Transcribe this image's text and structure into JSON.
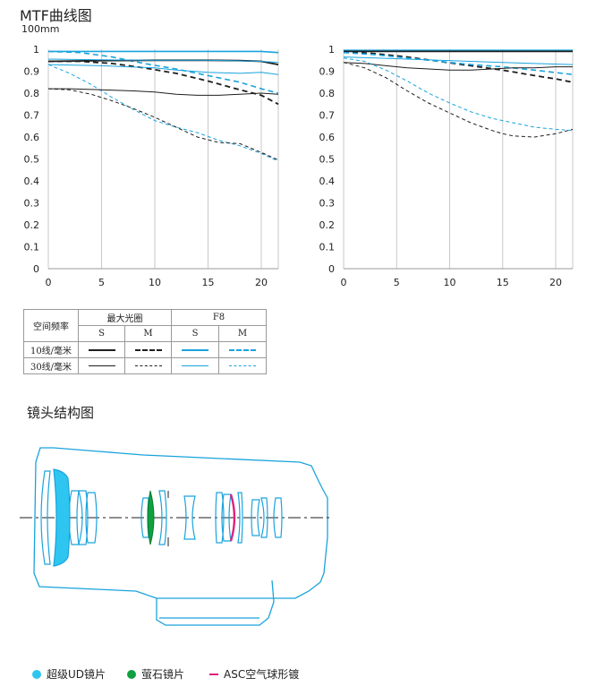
{
  "header": {
    "title": "MTF曲线图",
    "subtitle": "100mm"
  },
  "chart_data": [
    {
      "type": "line",
      "panel": "left",
      "xticks": [
        0,
        5,
        10,
        15,
        20
      ],
      "yticks": [
        0,
        0.1,
        0.2,
        0.3,
        0.4,
        0.5,
        0.6,
        0.7,
        0.8,
        0.9,
        1
      ],
      "ytick_labels": [
        "0",
        "0.1",
        "0.2",
        "0.3",
        "0.4",
        "0.5",
        "0.6",
        "0.7",
        "0.8",
        "0.9",
        "1"
      ],
      "xlim": [
        0,
        21.6
      ],
      "ylim": [
        0,
        1
      ],
      "grid": "vertical",
      "series": [
        {
          "key": "f8-10-s",
          "color": "#1aa3dd",
          "width": 1.6,
          "dash": "",
          "x": [
            0,
            5,
            10,
            15,
            20,
            21.6
          ],
          "y": [
            0.99,
            0.99,
            0.99,
            0.99,
            0.99,
            0.985
          ]
        },
        {
          "key": "f8-10-m",
          "color": "#1aa3dd",
          "width": 1.6,
          "dash": "6,4",
          "x": [
            0,
            3,
            6,
            9,
            12,
            15,
            18,
            20,
            21.6
          ],
          "y": [
            0.99,
            0.985,
            0.965,
            0.935,
            0.91,
            0.88,
            0.85,
            0.82,
            0.8
          ]
        },
        {
          "key": "wide-10-s",
          "color": "#1e1e1e",
          "width": 1.8,
          "dash": "",
          "x": [
            0,
            5,
            10,
            15,
            18,
            20,
            21.6
          ],
          "y": [
            0.945,
            0.948,
            0.95,
            0.95,
            0.948,
            0.945,
            0.93
          ]
        },
        {
          "key": "wide-10-m",
          "color": "#1e1e1e",
          "width": 1.8,
          "dash": "6,4",
          "x": [
            0,
            3,
            6,
            9,
            12,
            15,
            18,
            20,
            21.6
          ],
          "y": [
            0.945,
            0.945,
            0.935,
            0.915,
            0.89,
            0.855,
            0.815,
            0.79,
            0.75
          ]
        },
        {
          "key": "f8-30-s",
          "color": "#1aa3dd",
          "width": 1,
          "dash": "",
          "x": [
            0,
            5,
            10,
            15,
            20,
            21.6
          ],
          "y": [
            0.955,
            0.952,
            0.95,
            0.95,
            0.945,
            0.94
          ]
        },
        {
          "key": "f8-30-s-b",
          "color": "#1aa3dd",
          "width": 1,
          "dash": "",
          "x": [
            0,
            5,
            10,
            12,
            15,
            18,
            20,
            21.6
          ],
          "y": [
            0.93,
            0.925,
            0.915,
            0.905,
            0.895,
            0.89,
            0.895,
            0.885
          ]
        },
        {
          "key": "f8-30-m",
          "color": "#1aa3dd",
          "width": 1,
          "dash": "4,3",
          "x": [
            0,
            2,
            4,
            6,
            8,
            10,
            12,
            14,
            16,
            18,
            20,
            21.6
          ],
          "y": [
            0.93,
            0.89,
            0.84,
            0.78,
            0.725,
            0.675,
            0.645,
            0.62,
            0.585,
            0.56,
            0.525,
            0.49
          ]
        },
        {
          "key": "wide-30-s",
          "color": "#1e1e1e",
          "width": 1,
          "dash": "",
          "x": [
            0,
            2,
            5,
            8,
            10,
            12,
            14,
            16,
            18,
            20,
            21.6
          ],
          "y": [
            0.82,
            0.82,
            0.815,
            0.81,
            0.805,
            0.795,
            0.79,
            0.79,
            0.795,
            0.8,
            0.795
          ]
        },
        {
          "key": "wide-30-m",
          "color": "#1e1e1e",
          "width": 1,
          "dash": "4,3",
          "x": [
            0,
            2,
            4,
            6,
            8,
            10,
            12,
            14,
            16,
            18,
            20,
            21.6
          ],
          "y": [
            0.82,
            0.815,
            0.795,
            0.765,
            0.73,
            0.69,
            0.645,
            0.6,
            0.575,
            0.57,
            0.53,
            0.495
          ]
        }
      ]
    },
    {
      "type": "line",
      "panel": "right",
      "xticks": [
        0,
        5,
        10,
        15,
        20
      ],
      "yticks": [
        0,
        0.1,
        0.2,
        0.3,
        0.4,
        0.5,
        0.6,
        0.7,
        0.8,
        0.9,
        1
      ],
      "ytick_labels": [
        "0",
        "0.1",
        "0.2",
        "0.3",
        "0.4",
        "0.5",
        "0.6",
        "0.7",
        "0.8",
        "0.9",
        "1"
      ],
      "xlim": [
        0,
        21.6
      ],
      "ylim": [
        0,
        1
      ],
      "grid": "vertical",
      "series": [
        {
          "key": "f8-10-s",
          "color": "#1aa3dd",
          "width": 1.6,
          "dash": "",
          "x": [
            0,
            5,
            10,
            15,
            20,
            21.6
          ],
          "y": [
            0.995,
            0.995,
            0.995,
            0.995,
            0.995,
            0.995
          ]
        },
        {
          "key": "wide-10-s",
          "color": "#1e1e1e",
          "width": 1.8,
          "dash": "",
          "x": [
            0,
            5,
            10,
            15,
            20,
            21.6
          ],
          "y": [
            0.99,
            0.99,
            0.99,
            0.99,
            0.99,
            0.99
          ]
        },
        {
          "key": "wide-10-m",
          "color": "#1e1e1e",
          "width": 1.8,
          "dash": "6,4",
          "x": [
            0,
            3,
            6,
            9,
            12,
            15,
            18,
            20,
            21.6
          ],
          "y": [
            0.99,
            0.98,
            0.965,
            0.945,
            0.925,
            0.905,
            0.88,
            0.865,
            0.85
          ]
        },
        {
          "key": "f8-10-m",
          "color": "#1aa3dd",
          "width": 1.6,
          "dash": "6,4",
          "x": [
            0,
            3,
            6,
            9,
            12,
            15,
            18,
            21.6
          ],
          "y": [
            0.985,
            0.975,
            0.96,
            0.945,
            0.93,
            0.92,
            0.905,
            0.885
          ]
        },
        {
          "key": "f8-30-s",
          "color": "#1aa3dd",
          "width": 1,
          "dash": "",
          "x": [
            0,
            3,
            6,
            9,
            12,
            15,
            18,
            21.6
          ],
          "y": [
            0.965,
            0.96,
            0.955,
            0.95,
            0.945,
            0.94,
            0.935,
            0.93
          ]
        },
        {
          "key": "wide-30-s",
          "color": "#1e1e1e",
          "width": 1,
          "dash": "",
          "x": [
            0,
            2,
            4,
            6,
            8,
            10,
            12,
            14,
            16,
            18,
            20,
            21.6
          ],
          "y": [
            0.94,
            0.935,
            0.925,
            0.915,
            0.91,
            0.905,
            0.905,
            0.91,
            0.915,
            0.915,
            0.92,
            0.92
          ]
        },
        {
          "key": "f8-30-m",
          "color": "#1aa3dd",
          "width": 1,
          "dash": "4,3",
          "x": [
            0,
            2,
            4,
            6,
            8,
            10,
            12,
            14,
            16,
            18,
            20,
            21.6
          ],
          "y": [
            0.96,
            0.945,
            0.905,
            0.855,
            0.8,
            0.755,
            0.715,
            0.685,
            0.665,
            0.645,
            0.635,
            0.63
          ]
        },
        {
          "key": "wide-30-m",
          "color": "#1e1e1e",
          "width": 1,
          "dash": "4,3",
          "x": [
            0,
            2,
            4,
            6,
            8,
            10,
            12,
            14,
            15,
            16,
            18,
            20,
            21.6
          ],
          "y": [
            0.94,
            0.915,
            0.87,
            0.81,
            0.755,
            0.71,
            0.665,
            0.63,
            0.615,
            0.605,
            0.6,
            0.615,
            0.635
          ]
        }
      ]
    }
  ],
  "legend_table": {
    "header_freq": "空间频率",
    "header_wide": "最大光圈",
    "header_f8": "F8",
    "sub_s": "S",
    "sub_m": "M",
    "row_10": "10线/毫米",
    "row_30": "30线/毫米",
    "black": "#1e1e1e",
    "blue": "#1aa3dd"
  },
  "structure": {
    "title": "镜头结构图",
    "outline_color": "#1aa3dd",
    "ud_color": "#2ec6f0",
    "fluorite_color": "#10a040",
    "asc_color": "#e0207a"
  },
  "bottom_legend": {
    "ud": "超级UD镜片",
    "fluorite": "萤石镜片",
    "asc": "ASC空气球形镀"
  }
}
